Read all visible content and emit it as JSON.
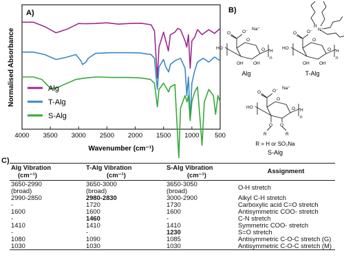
{
  "panel_a": {
    "letter": "A)",
    "chart_data": {
      "type": "line",
      "xlabel": "Wavenumber (cm⁻¹)",
      "ylabel": "Normalised Absorbance",
      "xlim": [
        4000,
        500
      ],
      "x_reversed": true,
      "x_ticks": [
        "4000",
        "3500",
        "3000",
        "2500",
        "2000",
        "1500",
        "1000",
        "500"
      ],
      "legend_placement": "bottom-left",
      "series": [
        {
          "name": "Alg",
          "color": "#9b2a8e",
          "offset": 0.86,
          "points": [
            [
              4000,
              0.0
            ],
            [
              3800,
              0.0
            ],
            [
              3600,
              -0.035
            ],
            [
              3400,
              -0.085
            ],
            [
              3200,
              -0.055
            ],
            [
              3000,
              -0.01
            ],
            [
              2900,
              -0.012
            ],
            [
              2700,
              -0.01
            ],
            [
              2500,
              -0.005
            ],
            [
              2300,
              -0.015
            ],
            [
              2100,
              -0.01
            ],
            [
              1900,
              -0.008
            ],
            [
              1720,
              -0.02
            ],
            [
              1660,
              -0.07
            ],
            [
              1610,
              -0.45
            ],
            [
              1580,
              -0.2
            ],
            [
              1500,
              -0.08
            ],
            [
              1415,
              -0.23
            ],
            [
              1380,
              -0.1
            ],
            [
              1300,
              -0.08
            ],
            [
              1250,
              -0.05
            ],
            [
              1200,
              -0.06
            ],
            [
              1120,
              -0.15
            ],
            [
              1090,
              -0.2
            ],
            [
              1060,
              -0.1
            ],
            [
              1030,
              -0.37
            ],
            [
              1000,
              -0.15
            ],
            [
              950,
              -0.12
            ],
            [
              900,
              -0.06
            ],
            [
              820,
              -0.1
            ],
            [
              700,
              -0.06
            ],
            [
              600,
              -0.09
            ],
            [
              500,
              -0.05
            ]
          ]
        },
        {
          "name": "T-Alg",
          "color": "#3a86c8",
          "offset": 0.62,
          "points": [
            [
              4000,
              0.0
            ],
            [
              3800,
              0.0
            ],
            [
              3600,
              -0.02
            ],
            [
              3400,
              -0.06
            ],
            [
              3200,
              -0.04
            ],
            [
              3050,
              -0.02
            ],
            [
              2960,
              -0.07
            ],
            [
              2930,
              -0.1
            ],
            [
              2870,
              -0.08
            ],
            [
              2830,
              -0.05
            ],
            [
              2700,
              -0.01
            ],
            [
              2400,
              -0.005
            ],
            [
              2100,
              -0.005
            ],
            [
              1900,
              -0.008
            ],
            [
              1720,
              -0.02
            ],
            [
              1660,
              -0.05
            ],
            [
              1610,
              -0.3
            ],
            [
              1580,
              -0.12
            ],
            [
              1500,
              -0.06
            ],
            [
              1460,
              -0.12
            ],
            [
              1410,
              -0.16
            ],
            [
              1380,
              -0.1
            ],
            [
              1300,
              -0.07
            ],
            [
              1200,
              -0.05
            ],
            [
              1120,
              -0.13
            ],
            [
              1090,
              -0.35
            ],
            [
              1060,
              -0.2
            ],
            [
              1030,
              -0.55
            ],
            [
              1000,
              -0.25
            ],
            [
              950,
              -0.15
            ],
            [
              900,
              -0.08
            ],
            [
              800,
              -0.05
            ],
            [
              700,
              -0.08
            ],
            [
              600,
              -0.04
            ],
            [
              500,
              -0.07
            ]
          ]
        },
        {
          "name": "S-Alg",
          "color": "#36a83b",
          "offset": 0.42,
          "points": [
            [
              4000,
              0.0
            ],
            [
              3800,
              0.0
            ],
            [
              3650,
              -0.02
            ],
            [
              3500,
              -0.09
            ],
            [
              3400,
              -0.09
            ],
            [
              3250,
              -0.06
            ],
            [
              3050,
              -0.02
            ],
            [
              2900,
              -0.01
            ],
            [
              2700,
              0.0
            ],
            [
              2400,
              -0.004
            ],
            [
              2100,
              -0.004
            ],
            [
              1900,
              -0.008
            ],
            [
              1730,
              -0.02
            ],
            [
              1660,
              -0.05
            ],
            [
              1610,
              -0.24
            ],
            [
              1580,
              -0.1
            ],
            [
              1500,
              -0.05
            ],
            [
              1410,
              -0.12
            ],
            [
              1380,
              -0.08
            ],
            [
              1300,
              -0.06
            ],
            [
              1230,
              -0.65
            ],
            [
              1200,
              -0.25
            ],
            [
              1120,
              -0.15
            ],
            [
              1085,
              -0.2
            ],
            [
              1060,
              -0.15
            ],
            [
              1030,
              -0.35
            ],
            [
              1000,
              -0.2
            ],
            [
              950,
              -0.12
            ],
            [
              900,
              -0.08
            ],
            [
              820,
              -0.55
            ],
            [
              780,
              -0.2
            ],
            [
              700,
              -0.1
            ],
            [
              620,
              -0.15
            ],
            [
              580,
              -0.3
            ],
            [
              540,
              -0.15
            ],
            [
              500,
              -0.2
            ]
          ]
        }
      ]
    }
  },
  "panel_b": {
    "letter": "B)",
    "alg": {
      "label": "Alg",
      "counter_ion": "Na⁺",
      "carboxylate": "O⁻",
      "ho": "HO",
      "oh1": "OH",
      "oh2": "OH",
      "h": "H",
      "n": "n",
      "o1": "O",
      "o2": "O",
      "ring_o": "O"
    },
    "talg": {
      "label": "T-Alg",
      "counter_ion": "H",
      "nitrogen": "N⁺",
      "carboxylate": "O⁻",
      "ho": "HO",
      "oh1": "OH",
      "oh2": "OH",
      "h": "H",
      "n": "n",
      "o1": "O",
      "o2": "O",
      "ring_o": "O"
    },
    "salg": {
      "label": "S-Alg",
      "counter_ion": "Na⁺",
      "carboxylate": "O⁻",
      "ho": "HO",
      "h": "H",
      "n": "n",
      "o1": "O",
      "o2": "O",
      "ring_o": "O",
      "r1": "R",
      "r2": "R",
      "o3": "O",
      "o4": "O",
      "r_definition": "R = H or SO₃Na"
    }
  },
  "panel_c": {
    "letter": "C)",
    "headers": {
      "alg": "Alg Vibration (cm⁻¹)",
      "talg": "T-Alg Vibration (cm⁻¹)",
      "salg": "S-Alg Vibration (cm⁻¹)",
      "assignment": "Assignment"
    },
    "header_lines": {
      "alg": [
        "Alg Vibration",
        "(cm⁻¹)"
      ],
      "talg": [
        "T-Alg Vibration",
        "(cm⁻¹)"
      ],
      "salg": [
        "S-Alg Vibration",
        "(cm⁻¹)"
      ]
    },
    "rows": [
      {
        "alg": [
          "3650-2990",
          "(broad)"
        ],
        "talg": [
          "3650-3000",
          "(broad)"
        ],
        "salg": [
          "3650-3050",
          "(broad)"
        ],
        "assignment": "O-H stretch",
        "bold": ""
      },
      {
        "alg": [
          "2990-2850"
        ],
        "talg": [
          "2980-2830"
        ],
        "salg": [
          "3000-2900"
        ],
        "assignment": "Alkyl C-H stretch",
        "bold": "talg"
      },
      {
        "alg": [
          "-"
        ],
        "talg": [
          "1720"
        ],
        "salg": [
          "1730"
        ],
        "assignment": "Carboxylic acid C=O stretch",
        "bold": ""
      },
      {
        "alg": [
          "1600"
        ],
        "talg": [
          "1600"
        ],
        "salg": [
          "1600"
        ],
        "assignment": "Antisymmetric COO- stretch",
        "bold": ""
      },
      {
        "alg": [
          "-"
        ],
        "talg": [
          "1460"
        ],
        "salg": [
          "-"
        ],
        "assignment": "C-N stretch",
        "bold": "talg"
      },
      {
        "alg": [
          "1410"
        ],
        "talg": [
          "1410"
        ],
        "salg": [
          "1410"
        ],
        "assignment": "Symmetric COO- stretch",
        "bold": ""
      },
      {
        "alg": [
          "-"
        ],
        "talg": [
          "-"
        ],
        "salg": [
          "1230"
        ],
        "assignment": "S=O stretch",
        "bold": "salg"
      },
      {
        "alg": [
          "1080"
        ],
        "talg": [
          "1090"
        ],
        "salg": [
          "1085"
        ],
        "assignment": "Antisymmetric C-O-C stretch (G)",
        "bold": ""
      },
      {
        "alg": [
          "1030"
        ],
        "talg": [
          "1030"
        ],
        "salg": [
          "1030"
        ],
        "assignment": "Antisymmetric C-O-C stretch (M)",
        "bold": ""
      }
    ]
  }
}
